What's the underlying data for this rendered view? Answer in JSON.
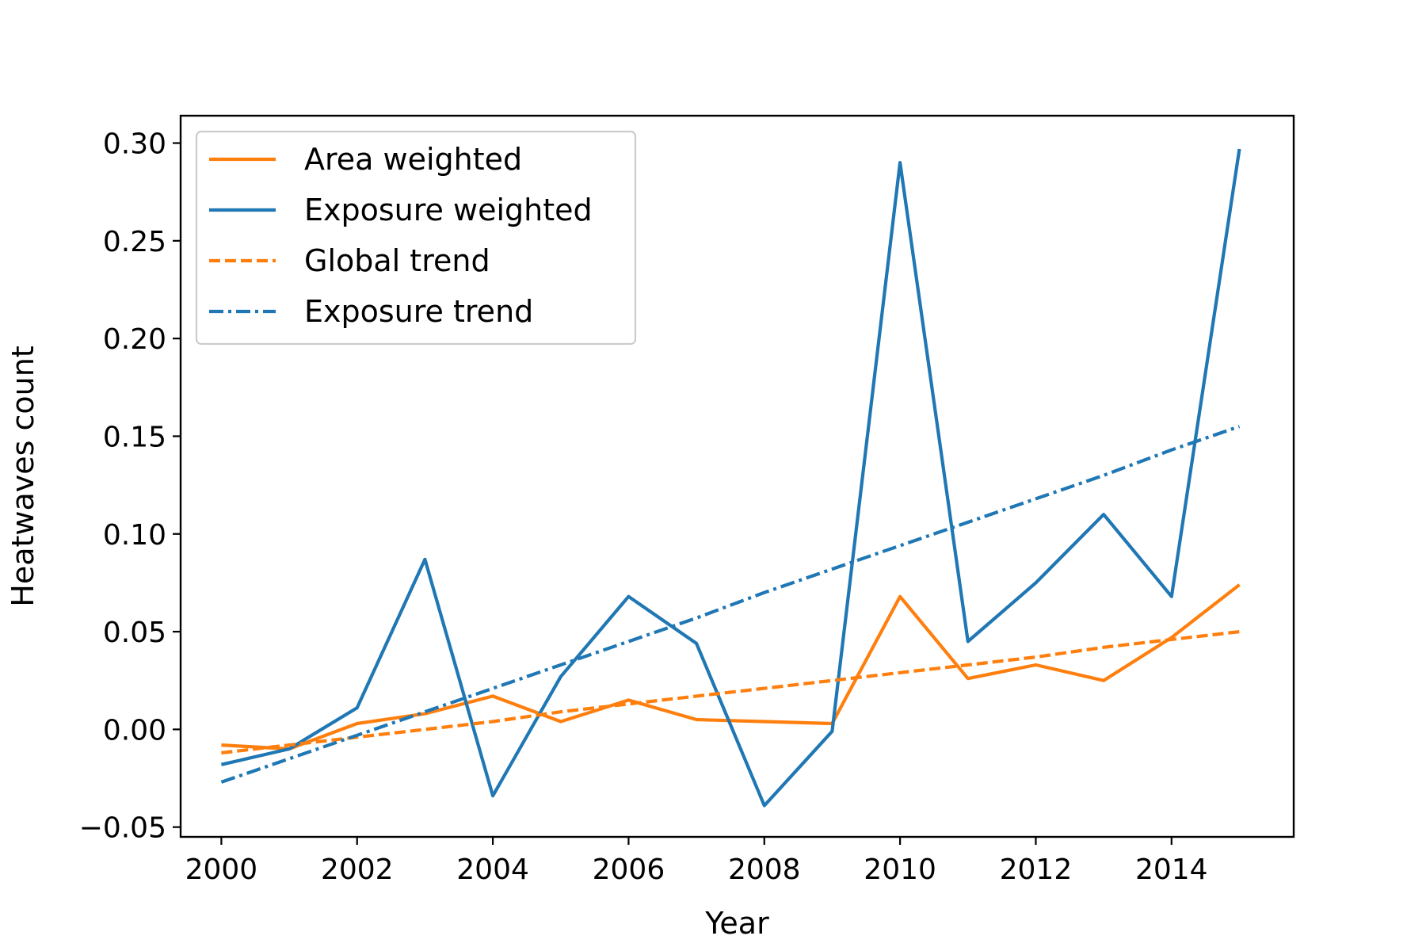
{
  "chart_data": {
    "type": "line",
    "title": "",
    "xlabel": "Year",
    "ylabel": "Heatwaves count",
    "xlim": [
      1999.4,
      2015.8
    ],
    "ylim": [
      -0.055,
      0.314
    ],
    "xticks": [
      2000,
      2002,
      2004,
      2006,
      2008,
      2010,
      2012,
      2014
    ],
    "xtick_labels": [
      "2000",
      "2002",
      "2004",
      "2006",
      "2008",
      "2010",
      "2012",
      "2014"
    ],
    "yticks": [
      -0.05,
      0.0,
      0.05,
      0.1,
      0.15,
      0.2,
      0.25,
      0.3
    ],
    "ytick_labels": [
      "−0.05",
      "0.00",
      "0.05",
      "0.10",
      "0.15",
      "0.20",
      "0.25",
      "0.30"
    ],
    "grid": false,
    "legend_position": "top-left",
    "x": [
      2000,
      2001,
      2002,
      2003,
      2004,
      2005,
      2006,
      2007,
      2008,
      2009,
      2010,
      2011,
      2012,
      2013,
      2014,
      2015
    ],
    "series": [
      {
        "name": "Area weighted",
        "color": "#ff7f0e",
        "style": "solid",
        "values": [
          -0.008,
          -0.01,
          0.003,
          0.008,
          0.017,
          0.004,
          0.015,
          0.005,
          0.004,
          0.003,
          0.068,
          0.026,
          0.033,
          0.025,
          0.047,
          0.074
        ]
      },
      {
        "name": "Exposure weighted",
        "color": "#1f77b4",
        "style": "solid",
        "values": [
          -0.018,
          -0.01,
          0.011,
          0.087,
          -0.034,
          0.027,
          0.068,
          0.044,
          -0.039,
          -0.001,
          0.29,
          0.045,
          0.075,
          0.11,
          0.068,
          0.297
        ]
      },
      {
        "name": "Global trend",
        "color": "#ff7f0e",
        "style": "dashed",
        "values": [
          -0.012,
          -0.008,
          -0.004,
          0.0,
          0.004,
          0.009,
          0.013,
          0.017,
          0.021,
          0.025,
          0.029,
          0.033,
          0.037,
          0.042,
          0.046,
          0.05
        ]
      },
      {
        "name": "Exposure trend",
        "color": "#1f77b4",
        "style": "dashdot",
        "values": [
          -0.027,
          -0.015,
          -0.003,
          0.009,
          0.021,
          0.033,
          0.045,
          0.057,
          0.07,
          0.082,
          0.094,
          0.106,
          0.118,
          0.13,
          0.143,
          0.155
        ]
      }
    ]
  }
}
